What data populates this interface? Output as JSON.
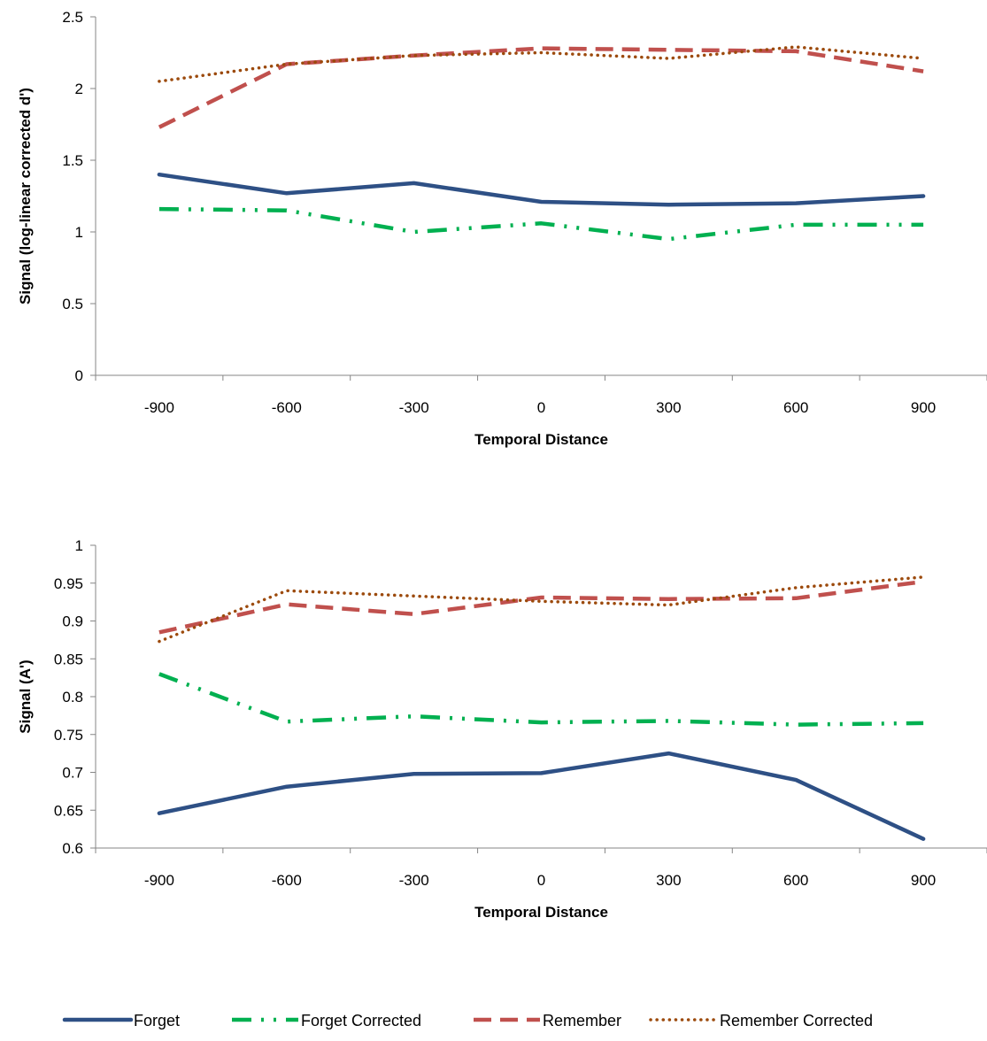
{
  "chart_data": [
    {
      "type": "line",
      "title": "",
      "xlabel": "Temporal Distance",
      "ylabel": "Signal (log-linear corrected d')",
      "x": [
        -900,
        -600,
        -300,
        0,
        300,
        600,
        900
      ],
      "x_tick_labels": [
        "-900",
        "-600",
        "-300",
        "0",
        "300",
        "600",
        "900"
      ],
      "ylim": [
        0,
        2.5
      ],
      "y_ticks": [
        0,
        0.5,
        1,
        1.5,
        2,
        2.5
      ],
      "y_tick_labels": [
        "0",
        "0.5",
        "1",
        "1.5",
        "2",
        "2.5"
      ],
      "grid": false,
      "series": [
        {
          "name": "Forget",
          "values": [
            1.4,
            1.27,
            1.34,
            1.21,
            1.19,
            1.2,
            1.25
          ],
          "color": "#2E5085",
          "style": "solid"
        },
        {
          "name": "Forget Corrected",
          "values": [
            1.16,
            1.15,
            1.0,
            1.06,
            0.95,
            1.05,
            1.05
          ],
          "color": "#00B050",
          "style": "dash-dot-dot"
        },
        {
          "name": "Remember",
          "values": [
            1.73,
            2.17,
            2.23,
            2.28,
            2.27,
            2.26,
            2.12
          ],
          "color": "#C0504D",
          "style": "dashed"
        },
        {
          "name": "Remember Corrected",
          "values": [
            2.05,
            2.17,
            2.23,
            2.25,
            2.21,
            2.29,
            2.21
          ],
          "color": "#9C4A0C",
          "style": "dotted"
        }
      ]
    },
    {
      "type": "line",
      "title": "",
      "xlabel": "Temporal Distance",
      "ylabel": "Signal (A')",
      "x": [
        -900,
        -600,
        -300,
        0,
        300,
        600,
        900
      ],
      "x_tick_labels": [
        "-900",
        "-600",
        "-300",
        "0",
        "300",
        "600",
        "900"
      ],
      "ylim": [
        0.6,
        1
      ],
      "y_ticks": [
        0.6,
        0.65,
        0.7,
        0.75,
        0.8,
        0.85,
        0.9,
        0.95,
        1
      ],
      "y_tick_labels": [
        "0.6",
        "0.65",
        "0.7",
        "0.75",
        "0.8",
        "0.85",
        "0.9",
        "0.95",
        "1"
      ],
      "grid": false,
      "series": [
        {
          "name": "Forget",
          "values": [
            0.646,
            0.681,
            0.698,
            0.699,
            0.725,
            0.69,
            0.612
          ],
          "color": "#2E5085",
          "style": "solid"
        },
        {
          "name": "Forget Corrected",
          "values": [
            0.83,
            0.767,
            0.774,
            0.766,
            0.768,
            0.763,
            0.765
          ],
          "color": "#00B050",
          "style": "dash-dot-dot"
        },
        {
          "name": "Remember",
          "values": [
            0.885,
            0.922,
            0.909,
            0.931,
            0.929,
            0.93,
            0.952
          ],
          "color": "#C0504D",
          "style": "dashed"
        },
        {
          "name": "Remember Corrected",
          "values": [
            0.873,
            0.94,
            0.933,
            0.926,
            0.921,
            0.944,
            0.958
          ],
          "color": "#9C4A0C",
          "style": "dotted"
        }
      ]
    }
  ],
  "legend": {
    "placement": "bottom",
    "items": [
      {
        "label": "Forget",
        "color": "#2E5085",
        "style": "solid"
      },
      {
        "label": "Forget Corrected",
        "color": "#00B050",
        "style": "dash-dot-dot"
      },
      {
        "label": "Remember",
        "color": "#C0504D",
        "style": "dashed"
      },
      {
        "label": "Remember Corrected",
        "color": "#9C4A0C",
        "style": "dotted"
      }
    ]
  }
}
